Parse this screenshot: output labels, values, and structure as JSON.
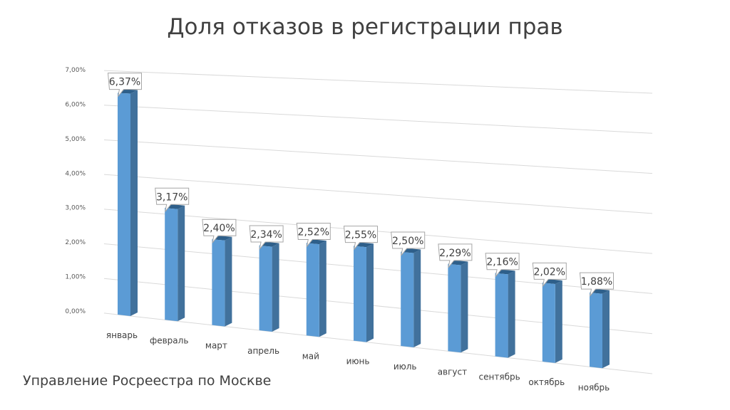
{
  "title": "Доля отказов в регистрации прав",
  "footer": "Управление Росреестра по Москве",
  "colors": {
    "bar_front": "#5b9bd5",
    "bar_side": "#41719c",
    "bar_top": "#2e5f8a",
    "grid": "#d9d9d9",
    "label_border": "#a6a6a6"
  },
  "chart_data": {
    "type": "bar",
    "title": "Доля отказов в регистрации прав",
    "categories": [
      "январь",
      "февраль",
      "март",
      "апрель",
      "май",
      "июнь",
      "июль",
      "август",
      "сентябрь",
      "октябрь",
      "ноябрь"
    ],
    "values": [
      6.37,
      3.17,
      2.4,
      2.34,
      2.52,
      2.55,
      2.5,
      2.29,
      2.16,
      2.02,
      1.88
    ],
    "data_labels": [
      "6,37%",
      "3,17%",
      "2,40%",
      "2,34%",
      "2,52%",
      "2,55%",
      "2,50%",
      "2,29%",
      "2,16%",
      "2,02%",
      "1,88%"
    ],
    "ylim": [
      0,
      7
    ],
    "y_ticks": [
      "0,00%",
      "1,00%",
      "2,00%",
      "3,00%",
      "4,00%",
      "5,00%",
      "6,00%",
      "7,00%"
    ],
    "xlabel": "",
    "ylabel": "",
    "grid": true,
    "style": "3d-perspective"
  }
}
